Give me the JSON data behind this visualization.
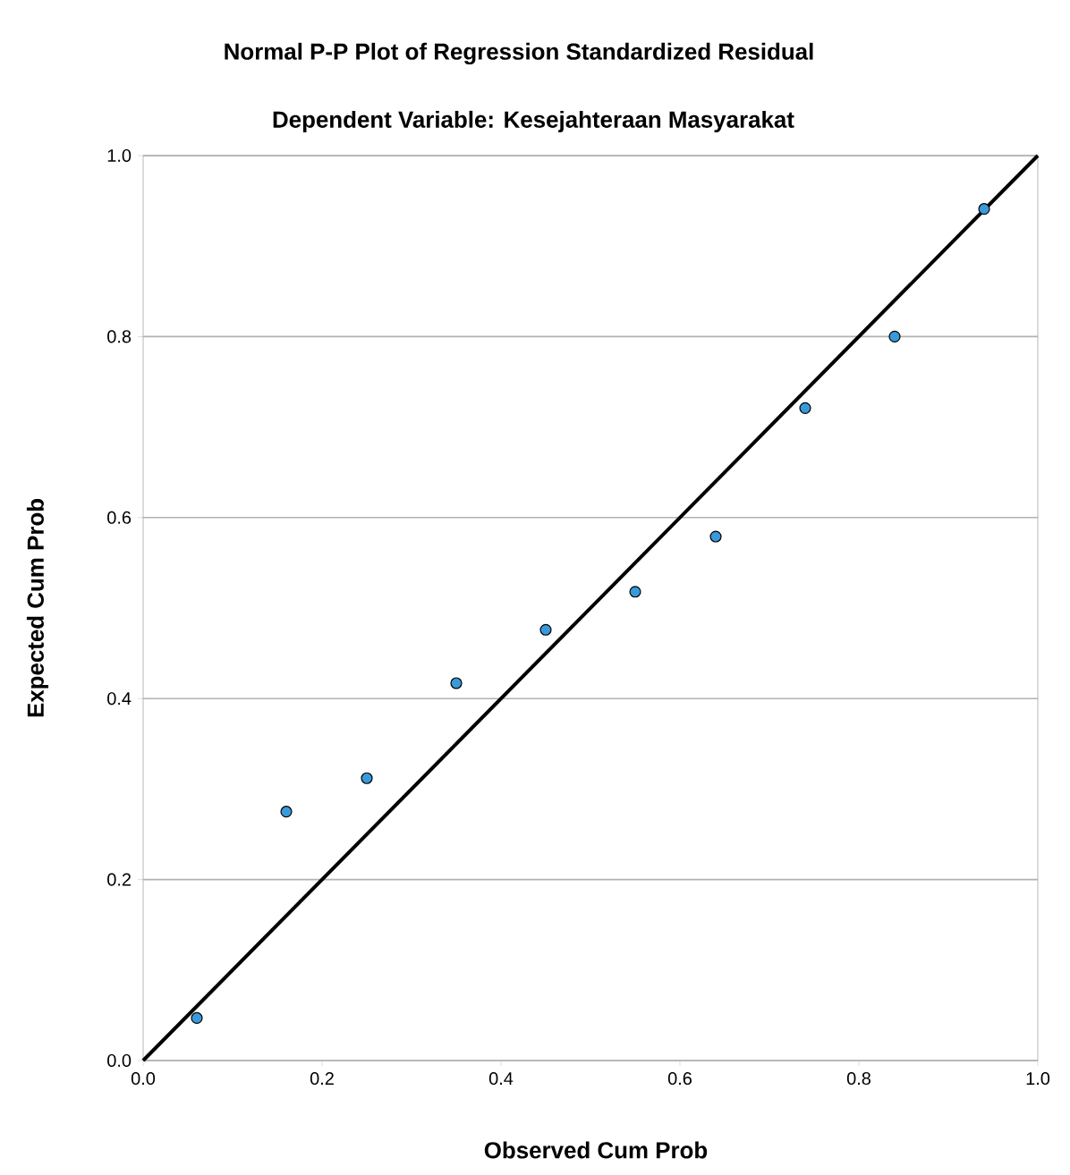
{
  "chart_data": {
    "type": "scatter",
    "title": "Normal P-P Plot of Regression Standardized Residual",
    "subtitle": "Dependent Variable: Kesejahteraan Masyarakat",
    "xlabel": "Observed Cum Prob",
    "ylabel": "Expected Cum Prob",
    "series": [
      {
        "marker": "circle",
        "color": "#3a9ad9",
        "x": [
          0.06,
          0.16,
          0.25,
          0.35,
          0.45,
          0.55,
          0.64,
          0.74,
          0.84,
          0.94
        ],
        "values": [
          0.047,
          0.275,
          0.312,
          0.417,
          0.476,
          0.518,
          0.579,
          0.721,
          0.8,
          0.941
        ]
      },
      {
        "type": "line",
        "marker": "none",
        "color": "#000000",
        "x": [
          0,
          1
        ],
        "values": [
          0,
          1
        ]
      }
    ],
    "xlim": [
      0,
      1
    ],
    "ylim": [
      0,
      1
    ],
    "xticks": [
      {
        "value": 0,
        "label": "0.0"
      },
      {
        "value": 0.2,
        "label": "0.2"
      },
      {
        "value": 0.4,
        "label": "0.4"
      },
      {
        "value": 0.6,
        "label": "0.6"
      },
      {
        "value": 0.8,
        "label": "0.8"
      },
      {
        "value": 1,
        "label": "1.0"
      }
    ],
    "yticks": [
      {
        "value": 0,
        "label": "0.0"
      },
      {
        "value": 0.2,
        "label": "0.2"
      },
      {
        "value": 0.4,
        "label": "0.4"
      },
      {
        "value": 0.6,
        "label": "0.6"
      },
      {
        "value": 0.8,
        "label": "0.8"
      },
      {
        "value": 1,
        "label": "1.0"
      }
    ],
    "grid": "y",
    "line_style": "solid"
  }
}
